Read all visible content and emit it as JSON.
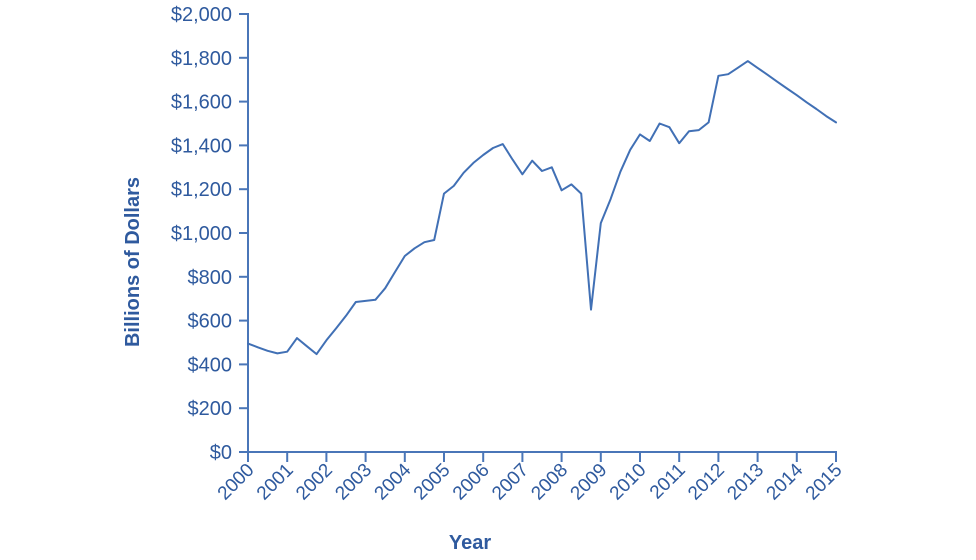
{
  "figure": {
    "background": "#ffffff"
  },
  "chart_data": {
    "type": "line",
    "title": "",
    "xlabel": "Year",
    "ylabel": "Billions of Dollars",
    "x_tick_labels": [
      "2000",
      "2001",
      "2002",
      "2003",
      "2004",
      "2005",
      "2006",
      "2007",
      "2008",
      "2009",
      "2010",
      "2011",
      "2012",
      "2013",
      "2014",
      "2015"
    ],
    "y_tick_labels": [
      "$0",
      "$200",
      "$400",
      "$600",
      "$800",
      "$1,000",
      "$1,200",
      "$1,400",
      "$1,600",
      "$1,800",
      "$2,000"
    ],
    "xlim": [
      2000,
      2015
    ],
    "ylim": [
      0,
      2000
    ],
    "y_tick_step": 200,
    "grid": false,
    "legend_position": "none",
    "colors": {
      "line": "#4170b5",
      "axis": "#4a76b8",
      "text": "#2f5a9e"
    },
    "series": [
      {
        "name": "value_billions_of_dollars",
        "points": [
          [
            2000.0,
            495
          ],
          [
            2000.25,
            478
          ],
          [
            2000.5,
            462
          ],
          [
            2000.75,
            450
          ],
          [
            2001.0,
            458
          ],
          [
            2001.25,
            520
          ],
          [
            2001.5,
            483
          ],
          [
            2001.75,
            447
          ],
          [
            2002.0,
            510
          ],
          [
            2002.25,
            565
          ],
          [
            2002.5,
            622
          ],
          [
            2002.75,
            685
          ],
          [
            2003.0,
            690
          ],
          [
            2003.25,
            695
          ],
          [
            2003.5,
            748
          ],
          [
            2003.75,
            822
          ],
          [
            2004.0,
            895
          ],
          [
            2004.25,
            930
          ],
          [
            2004.5,
            958
          ],
          [
            2004.75,
            968
          ],
          [
            2005.0,
            1180
          ],
          [
            2005.25,
            1215
          ],
          [
            2005.5,
            1275
          ],
          [
            2005.75,
            1320
          ],
          [
            2006.0,
            1356
          ],
          [
            2006.25,
            1388
          ],
          [
            2006.5,
            1406
          ],
          [
            2006.75,
            1335
          ],
          [
            2007.0,
            1268
          ],
          [
            2007.25,
            1330
          ],
          [
            2007.5,
            1283
          ],
          [
            2007.75,
            1300
          ],
          [
            2008.0,
            1195
          ],
          [
            2008.25,
            1222
          ],
          [
            2008.5,
            1180
          ],
          [
            2008.75,
            650
          ],
          [
            2009.0,
            1045
          ],
          [
            2009.25,
            1155
          ],
          [
            2009.5,
            1280
          ],
          [
            2009.75,
            1380
          ],
          [
            2010.0,
            1450
          ],
          [
            2010.25,
            1420
          ],
          [
            2010.5,
            1500
          ],
          [
            2010.75,
            1483
          ],
          [
            2011.0,
            1410
          ],
          [
            2011.25,
            1465
          ],
          [
            2011.5,
            1470
          ],
          [
            2011.75,
            1505
          ],
          [
            2012.0,
            1718
          ],
          [
            2012.25,
            1725
          ],
          [
            2012.5,
            1755
          ],
          [
            2012.75,
            1785
          ],
          [
            2013.0,
            1754
          ],
          [
            2013.25,
            1723
          ],
          [
            2013.5,
            1691
          ],
          [
            2013.75,
            1660
          ],
          [
            2014.0,
            1629
          ],
          [
            2014.25,
            1597
          ],
          [
            2014.5,
            1566
          ],
          [
            2014.75,
            1534
          ],
          [
            2015.0,
            1505
          ]
        ]
      }
    ]
  }
}
